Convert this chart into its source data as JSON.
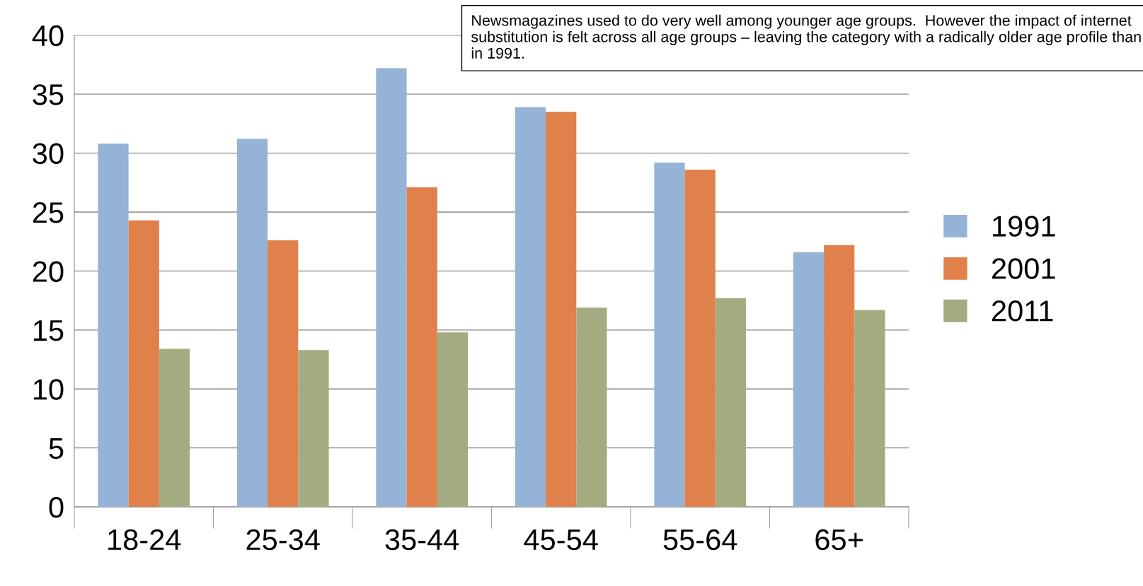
{
  "chart_data": {
    "type": "bar",
    "categories": [
      "18-24",
      "25-34",
      "35-44",
      "45-54",
      "55-64",
      "65+"
    ],
    "series": [
      {
        "name": "1991",
        "color": "#95b3d7",
        "values": [
          30.8,
          31.2,
          37.2,
          33.9,
          29.2,
          21.6
        ]
      },
      {
        "name": "2001",
        "color": "#e0804a",
        "values": [
          24.3,
          22.6,
          27.1,
          33.5,
          28.6,
          22.2
        ]
      },
      {
        "name": "2011",
        "color": "#a5ab80",
        "values": [
          13.4,
          13.3,
          14.8,
          16.9,
          17.7,
          16.7
        ]
      }
    ],
    "ylim": [
      0,
      40
    ],
    "yticks": [
      0,
      5,
      10,
      15,
      20,
      25,
      30,
      35,
      40
    ],
    "grid": "y",
    "legend": "right",
    "annotations": [
      "Newsmagazines used to do very well among younger age groups.  However the impact of internet substitution is felt across all age groups – leaving the category with a radically older age profile than in 1991."
    ]
  }
}
